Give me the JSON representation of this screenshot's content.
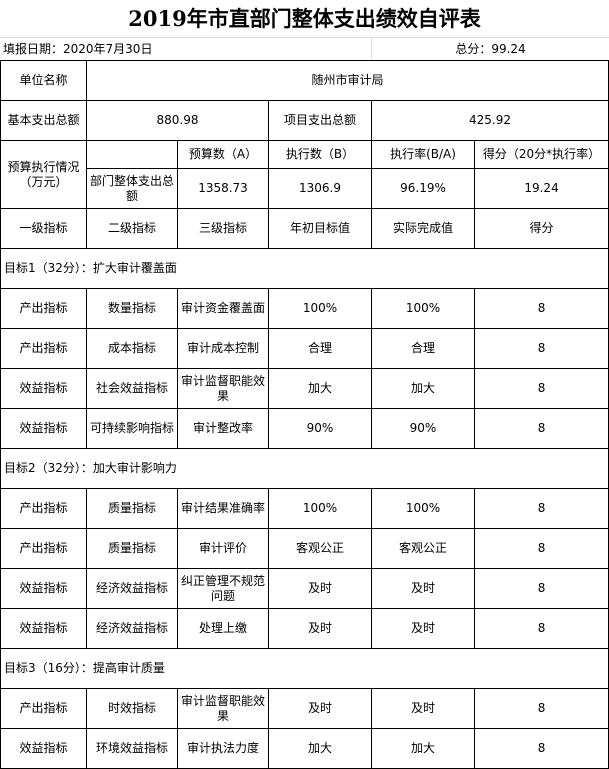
{
  "title": "2019年市直部门整体支出绩效自评表",
  "fill_date": "填报日期：2020年7月30日",
  "total_score": "总分：99.24",
  "unit_label": "单位名称",
  "unit_value": "随州市审计局",
  "basic_label": "基本支出总额",
  "basic_value": "880.98",
  "project_label": "项目支出总额",
  "project_value": "425.92",
  "budget": {
    "label": "预算执行情况（万元）",
    "headers": [
      "预算数（A）",
      "执行数（B）",
      "执行率(B/A)",
      "得分（20分*执行率）"
    ],
    "row_label": "部门整体支出总额",
    "values": [
      "1358.73",
      "1306.9",
      "96.19%",
      "19.24"
    ]
  },
  "indicator_headers": [
    "一级指标",
    "二级指标",
    "三级指标",
    "年初目标值",
    "实际完成值",
    "得分"
  ],
  "goals": [
    {
      "title": "目标1（32分）：扩大审计覆盖面",
      "rows": [
        [
          "产出指标",
          "数量指标",
          "审计资金覆盖面",
          "100%",
          "100%",
          "8"
        ],
        [
          "产出指标",
          "成本指标",
          "审计成本控制",
          "合理",
          "合理",
          "8"
        ],
        [
          "效益指标",
          "社会效益指标",
          "审计监督职能效果",
          "加大",
          "加大",
          "8"
        ],
        [
          "效益指标",
          "可持续影响指标",
          "审计整改率",
          "90%",
          "90%",
          "8"
        ]
      ]
    },
    {
      "title": "目标2（32分）：加大审计影响力",
      "rows": [
        [
          "产出指标",
          "质量指标",
          "审计结果准确率",
          "100%",
          "100%",
          "8"
        ],
        [
          "产出指标",
          "质量指标",
          "审计评价",
          "客观公正",
          "客观公正",
          "8"
        ],
        [
          "效益指标",
          "经济效益指标",
          "纠正管理不规范问题",
          "及时",
          "及时",
          "8"
        ],
        [
          "效益指标",
          "经济效益指标",
          "处理上缴",
          "及时",
          "及时",
          "8"
        ]
      ]
    },
    {
      "title": "目标3（16分）：提高审计质量",
      "rows": [
        [
          "产出指标",
          "时效指标",
          "审计监督职能效果",
          "及时",
          "及时",
          "8"
        ],
        [
          "效益指标",
          "环境效益指标",
          "审计执法力度",
          "加大",
          "加大",
          "8"
        ]
      ]
    }
  ]
}
